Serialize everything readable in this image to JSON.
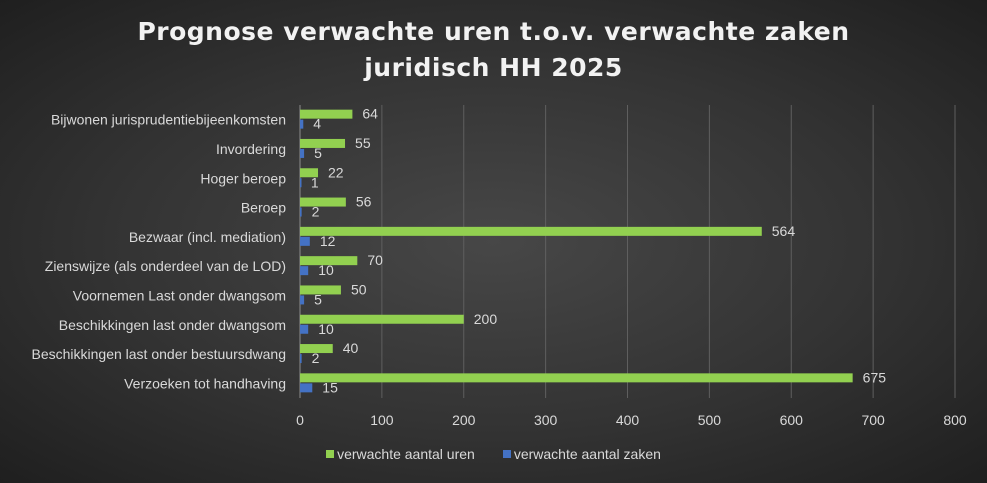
{
  "chart_data": {
    "type": "bar",
    "orientation": "horizontal",
    "title_line1": "Prognose verwachte uren t.o.v. verwachte zaken",
    "title_line2": "juridisch HH 2025",
    "categories": [
      "Bijwonen jurisprudentiebijeenkomsten",
      "Invordering",
      "Hoger beroep",
      "Beroep",
      "Bezwaar (incl. mediation)",
      "Zienswijze (als onderdeel van de LOD)",
      "Voornemen Last onder dwangsom",
      "Beschikkingen last onder dwangsom",
      "Beschikkingen last onder bestuursdwang",
      "Verzoeken tot handhaving"
    ],
    "series": [
      {
        "name": "verwachte aantal uren",
        "color": "#92d050",
        "values": [
          64,
          55,
          22,
          56,
          564,
          70,
          50,
          200,
          40,
          675
        ]
      },
      {
        "name": "verwachte aantal zaken",
        "color": "#4472c4",
        "values": [
          4,
          5,
          1,
          2,
          12,
          10,
          5,
          10,
          2,
          15
        ]
      }
    ],
    "xlim": [
      0,
      800
    ],
    "xticks": [
      "0",
      "100",
      "200",
      "300",
      "400",
      "500",
      "600",
      "700",
      "800"
    ],
    "grid": true,
    "legend_position": "bottom"
  }
}
